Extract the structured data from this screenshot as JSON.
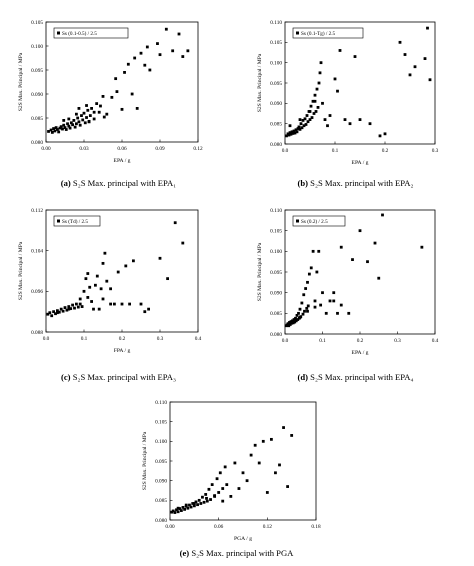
{
  "panels": [
    {
      "id": "a",
      "caption_letter": "(a)",
      "caption_text": "S₂S Max. principal with EPA₁",
      "legend": "Ss (0.1-0.5) / 2.5",
      "xlabel": "EPA / g",
      "ylabel": "S2S Max. Principal / MPa",
      "xticks": [
        "0.00",
        "0.03",
        "0.06",
        "0.09",
        "0.12"
      ],
      "yticks": [
        "0.080",
        "0.085",
        "0.090",
        "0.095",
        "0.100",
        "0.105"
      ]
    },
    {
      "id": "b",
      "caption_letter": "(b)",
      "caption_text": "S₂S Max. principal with EPA₂",
      "legend": "Ss (0.1-Tg) / 2.5",
      "xlabel": "EPA / g",
      "ylabel": "S2S Max. Principal / MPa",
      "xticks": [
        "0.0",
        "0.1",
        "0.2",
        "0.3"
      ],
      "yticks": [
        "0.080",
        "0.085",
        "0.090",
        "0.095",
        "0.100",
        "0.105",
        "0.110"
      ]
    },
    {
      "id": "c",
      "caption_letter": "(c)",
      "caption_text": "S₂S Max. principal with EPA₃",
      "legend": "Ss (Td) / 2.5",
      "xlabel": "FPA / g",
      "ylabel": "S2S Max. Principal / MPa",
      "xticks": [
        "0.0",
        "0.1",
        "0.2",
        "0.3",
        "0.4"
      ],
      "yticks": [
        "0.088",
        "0.096",
        "0.104",
        "0.112"
      ]
    },
    {
      "id": "d",
      "caption_letter": "(d)",
      "caption_text": "S₂S Max. principal with EPA₄",
      "legend": "Ss (0.2) / 2.5",
      "xlabel": "EPA / g",
      "ylabel": "S2S Max. Principal / MPa",
      "xticks": [
        "0.0",
        "0.1",
        "0.2",
        "0.3",
        "0.4"
      ],
      "yticks": [
        "0.080",
        "0.085",
        "0.090",
        "0.095",
        "0.100",
        "0.105",
        "0.110"
      ]
    },
    {
      "id": "e",
      "caption_letter": "(e)",
      "caption_text": "S₂S Max. principal with PGA",
      "legend": "",
      "xlabel": "PGA / g",
      "ylabel": "S2S Max. Principal / MPa",
      "xticks": [
        "0.00",
        "0.06",
        "0.12",
        "0.18"
      ],
      "yticks": [
        "0.080",
        "0.085",
        "0.090",
        "0.095",
        "0.100",
        "0.105",
        "0.110"
      ]
    }
  ],
  "chart_data": [
    {
      "type": "scatter",
      "panel": "a",
      "xlim": [
        0,
        0.12
      ],
      "ylim": [
        0.08,
        0.105
      ],
      "grid": false,
      "legend_placement": "top-left",
      "x": [
        0.002,
        0.004,
        0.005,
        0.006,
        0.007,
        0.008,
        0.009,
        0.01,
        0.011,
        0.012,
        0.013,
        0.014,
        0.015,
        0.016,
        0.017,
        0.018,
        0.019,
        0.02,
        0.021,
        0.022,
        0.023,
        0.024,
        0.025,
        0.026,
        0.027,
        0.028,
        0.029,
        0.03,
        0.031,
        0.032,
        0.033,
        0.034,
        0.035,
        0.036,
        0.038,
        0.04,
        0.042,
        0.043,
        0.045,
        0.048,
        0.052,
        0.055,
        0.06,
        0.062,
        0.065,
        0.068,
        0.07,
        0.072,
        0.075,
        0.078,
        0.08,
        0.082,
        0.088,
        0.09,
        0.095,
        0.1,
        0.105,
        0.108,
        0.112,
        0.014,
        0.018,
        0.024,
        0.026,
        0.032,
        0.034,
        0.038,
        0.046,
        0.056
      ],
      "y": [
        0.0822,
        0.0825,
        0.082,
        0.0828,
        0.0823,
        0.083,
        0.0826,
        0.0821,
        0.0829,
        0.0832,
        0.0827,
        0.0835,
        0.083,
        0.0826,
        0.0838,
        0.0833,
        0.0829,
        0.084,
        0.0836,
        0.0845,
        0.0831,
        0.0838,
        0.085,
        0.0842,
        0.0835,
        0.0855,
        0.0846,
        0.086,
        0.084,
        0.0851,
        0.0866,
        0.0843,
        0.0855,
        0.087,
        0.0848,
        0.088,
        0.0862,
        0.0875,
        0.0895,
        0.0858,
        0.0893,
        0.0932,
        0.0868,
        0.0945,
        0.0962,
        0.09,
        0.0975,
        0.087,
        0.0985,
        0.096,
        0.0998,
        0.095,
        0.1005,
        0.0982,
        0.1035,
        0.099,
        0.1025,
        0.0978,
        0.099,
        0.0845,
        0.0848,
        0.0858,
        0.087,
        0.0876,
        0.0842,
        0.0862,
        0.0852,
        0.0905
      ]
    },
    {
      "type": "scatter",
      "panel": "b",
      "xlim": [
        0,
        0.3
      ],
      "ylim": [
        0.08,
        0.11
      ],
      "grid": false,
      "legend_placement": "top-left",
      "x": [
        0.003,
        0.006,
        0.008,
        0.01,
        0.012,
        0.014,
        0.016,
        0.018,
        0.02,
        0.022,
        0.024,
        0.026,
        0.028,
        0.03,
        0.032,
        0.034,
        0.036,
        0.038,
        0.04,
        0.042,
        0.044,
        0.046,
        0.048,
        0.05,
        0.052,
        0.054,
        0.056,
        0.058,
        0.06,
        0.062,
        0.064,
        0.066,
        0.068,
        0.07,
        0.072,
        0.075,
        0.08,
        0.085,
        0.09,
        0.1,
        0.105,
        0.11,
        0.12,
        0.13,
        0.14,
        0.15,
        0.17,
        0.19,
        0.2,
        0.23,
        0.24,
        0.25,
        0.26,
        0.28,
        0.285,
        0.29,
        0.01,
        0.03,
        0.05,
        0.06
      ],
      "y": [
        0.082,
        0.0825,
        0.0822,
        0.0828,
        0.0824,
        0.083,
        0.0826,
        0.0832,
        0.0827,
        0.0835,
        0.083,
        0.0838,
        0.0842,
        0.0836,
        0.085,
        0.084,
        0.0858,
        0.0845,
        0.0862,
        0.0848,
        0.087,
        0.0855,
        0.088,
        0.086,
        0.0893,
        0.0865,
        0.0905,
        0.0875,
        0.092,
        0.088,
        0.0935,
        0.089,
        0.095,
        0.0975,
        0.1,
        0.09,
        0.086,
        0.0845,
        0.087,
        0.096,
        0.093,
        0.103,
        0.086,
        0.085,
        0.1015,
        0.086,
        0.085,
        0.082,
        0.0825,
        0.105,
        0.102,
        0.097,
        0.099,
        0.101,
        0.1085,
        0.0958,
        0.0845,
        0.086,
        0.088,
        0.0905
      ]
    },
    {
      "type": "scatter",
      "panel": "c",
      "xlim": [
        0,
        0.4
      ],
      "ylim": [
        0.088,
        0.112
      ],
      "grid": false,
      "legend_placement": "top-left",
      "x": [
        0.005,
        0.01,
        0.015,
        0.02,
        0.025,
        0.03,
        0.035,
        0.04,
        0.045,
        0.05,
        0.055,
        0.06,
        0.065,
        0.07,
        0.075,
        0.08,
        0.085,
        0.09,
        0.095,
        0.1,
        0.105,
        0.11,
        0.115,
        0.12,
        0.125,
        0.13,
        0.135,
        0.14,
        0.145,
        0.15,
        0.155,
        0.16,
        0.17,
        0.18,
        0.19,
        0.2,
        0.21,
        0.22,
        0.23,
        0.25,
        0.26,
        0.27,
        0.3,
        0.32,
        0.34,
        0.36,
        0.03,
        0.06,
        0.09,
        0.11,
        0.15,
        0.17
      ],
      "y": [
        0.0915,
        0.0918,
        0.0912,
        0.092,
        0.0916,
        0.0922,
        0.0919,
        0.0925,
        0.0921,
        0.0928,
        0.0923,
        0.093,
        0.0926,
        0.0933,
        0.0927,
        0.0935,
        0.0929,
        0.0945,
        0.093,
        0.096,
        0.0985,
        0.0995,
        0.0968,
        0.094,
        0.0925,
        0.0972,
        0.099,
        0.0925,
        0.0965,
        0.0945,
        0.1035,
        0.098,
        0.0935,
        0.0935,
        0.0998,
        0.0935,
        0.101,
        0.0935,
        0.102,
        0.0935,
        0.092,
        0.0925,
        0.1025,
        0.0985,
        0.1095,
        0.1055,
        0.0918,
        0.0925,
        0.0935,
        0.0948,
        0.1015,
        0.0965
      ]
    },
    {
      "type": "scatter",
      "panel": "d",
      "xlim": [
        0,
        0.4
      ],
      "ylim": [
        0.08,
        0.11
      ],
      "grid": false,
      "legend_placement": "top-left",
      "x": [
        0.003,
        0.006,
        0.008,
        0.01,
        0.012,
        0.014,
        0.016,
        0.018,
        0.02,
        0.022,
        0.024,
        0.026,
        0.028,
        0.03,
        0.032,
        0.034,
        0.036,
        0.038,
        0.04,
        0.042,
        0.045,
        0.048,
        0.05,
        0.052,
        0.055,
        0.058,
        0.06,
        0.062,
        0.065,
        0.07,
        0.075,
        0.08,
        0.085,
        0.09,
        0.095,
        0.1,
        0.11,
        0.12,
        0.13,
        0.14,
        0.15,
        0.17,
        0.18,
        0.2,
        0.22,
        0.24,
        0.25,
        0.26,
        0.365,
        0.02,
        0.04,
        0.06,
        0.08,
        0.13,
        0.15
      ],
      "y": [
        0.082,
        0.0822,
        0.0825,
        0.082,
        0.0828,
        0.0823,
        0.083,
        0.0826,
        0.0832,
        0.0827,
        0.0835,
        0.0829,
        0.0838,
        0.0832,
        0.0845,
        0.0835,
        0.085,
        0.0838,
        0.086,
        0.0842,
        0.0875,
        0.0848,
        0.0895,
        0.0855,
        0.091,
        0.0862,
        0.0925,
        0.0868,
        0.0945,
        0.096,
        0.1,
        0.088,
        0.095,
        0.1,
        0.087,
        0.09,
        0.085,
        0.088,
        0.09,
        0.085,
        0.101,
        0.085,
        0.098,
        0.105,
        0.0975,
        0.102,
        0.0935,
        0.1088,
        0.101,
        0.083,
        0.084,
        0.0855,
        0.0865,
        0.088,
        0.087
      ]
    },
    {
      "type": "scatter",
      "panel": "e",
      "xlim": [
        0,
        0.18
      ],
      "ylim": [
        0.08,
        0.11
      ],
      "grid": false,
      "x": [
        0.002,
        0.004,
        0.006,
        0.008,
        0.01,
        0.012,
        0.014,
        0.016,
        0.018,
        0.02,
        0.022,
        0.024,
        0.026,
        0.028,
        0.03,
        0.032,
        0.034,
        0.036,
        0.038,
        0.04,
        0.042,
        0.044,
        0.046,
        0.048,
        0.05,
        0.052,
        0.055,
        0.058,
        0.06,
        0.062,
        0.065,
        0.068,
        0.07,
        0.075,
        0.08,
        0.085,
        0.09,
        0.095,
        0.1,
        0.105,
        0.11,
        0.115,
        0.12,
        0.125,
        0.13,
        0.135,
        0.14,
        0.145,
        0.15,
        0.01,
        0.02,
        0.03,
        0.045,
        0.055,
        0.065
      ],
      "y": [
        0.082,
        0.0823,
        0.0819,
        0.0826,
        0.0821,
        0.0829,
        0.0824,
        0.0832,
        0.0827,
        0.0835,
        0.083,
        0.0838,
        0.0833,
        0.0842,
        0.0836,
        0.0846,
        0.0839,
        0.085,
        0.0842,
        0.0858,
        0.0845,
        0.0865,
        0.0848,
        0.0878,
        0.0852,
        0.089,
        0.086,
        0.0905,
        0.087,
        0.092,
        0.088,
        0.0935,
        0.089,
        0.086,
        0.0945,
        0.088,
        0.092,
        0.09,
        0.0965,
        0.099,
        0.0945,
        0.1,
        0.087,
        0.1005,
        0.092,
        0.094,
        0.1035,
        0.0885,
        0.1015,
        0.083,
        0.0838,
        0.0842,
        0.0855,
        0.0862,
        0.0848
      ]
    }
  ]
}
